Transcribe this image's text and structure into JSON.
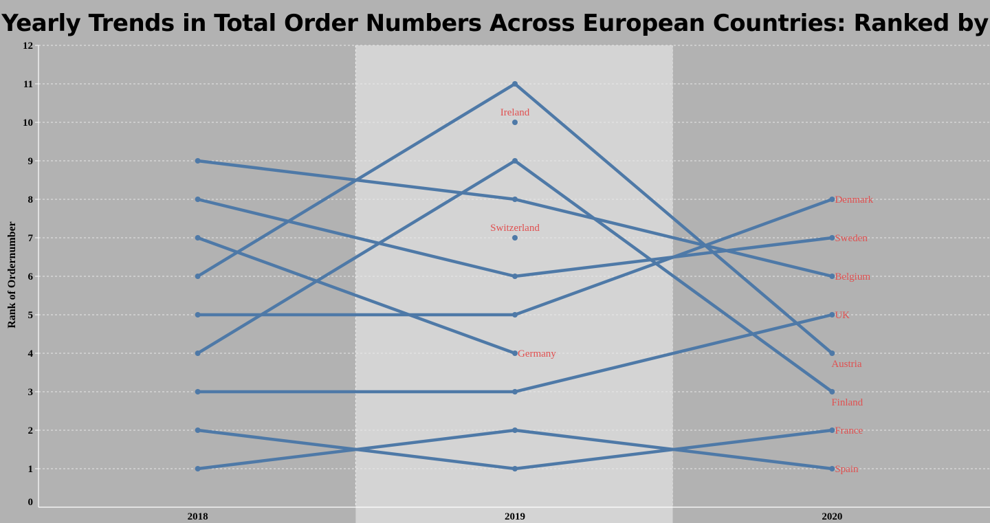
{
  "chart_data": {
    "type": "line",
    "title": "Yearly Trends in Total Order Numbers Across European Countries: Ranked by Year",
    "xlabel": "",
    "ylabel": "Rank of Ordernumber",
    "categories": [
      "2018",
      "2019",
      "2020"
    ],
    "ylim": [
      0,
      12
    ],
    "yticks": [
      0,
      1,
      2,
      3,
      4,
      5,
      6,
      7,
      8,
      9,
      10,
      11,
      12
    ],
    "grid": true,
    "highlighted_category": "2019",
    "colors": {
      "background": "#b2b2b2",
      "highlight_band": "#d4d4d4",
      "line": "#4e79a7",
      "label": "#e05050",
      "grid": "#e8e8e8"
    },
    "series": [
      {
        "values": [
          6,
          11,
          4
        ],
        "label": "Austria",
        "label_at": "2020",
        "label_pos": "below"
      },
      {
        "values": [
          4,
          9,
          3
        ],
        "label": "Finland",
        "label_at": "2020",
        "label_pos": "below"
      },
      {
        "values": [
          9,
          8,
          6
        ],
        "label": "Belgium",
        "label_at": "2020",
        "label_pos": "right"
      },
      {
        "values": [
          8,
          6,
          7
        ],
        "label": "Sweden",
        "label_at": "2020",
        "label_pos": "right"
      },
      {
        "values": [
          7,
          4,
          null
        ],
        "label": "Germany",
        "label_at": "2019",
        "label_pos": "right"
      },
      {
        "values": [
          5,
          5,
          8
        ],
        "label": "Denmark",
        "label_at": "2020",
        "label_pos": "right"
      },
      {
        "values": [
          3,
          3,
          5
        ],
        "label": "UK",
        "label_at": "2020",
        "label_pos": "right"
      },
      {
        "values": [
          2,
          1,
          2
        ],
        "label": "France",
        "label_at": "2020",
        "label_pos": "right"
      },
      {
        "values": [
          1,
          2,
          1
        ],
        "label": "Spain",
        "label_at": "2020",
        "label_pos": "right"
      },
      {
        "values": [
          null,
          10,
          null
        ],
        "label": "Ireland",
        "label_at": "2019",
        "label_pos": "above"
      },
      {
        "values": [
          null,
          7,
          null
        ],
        "label": "Switzerland",
        "label_at": "2019",
        "label_pos": "above"
      }
    ]
  }
}
